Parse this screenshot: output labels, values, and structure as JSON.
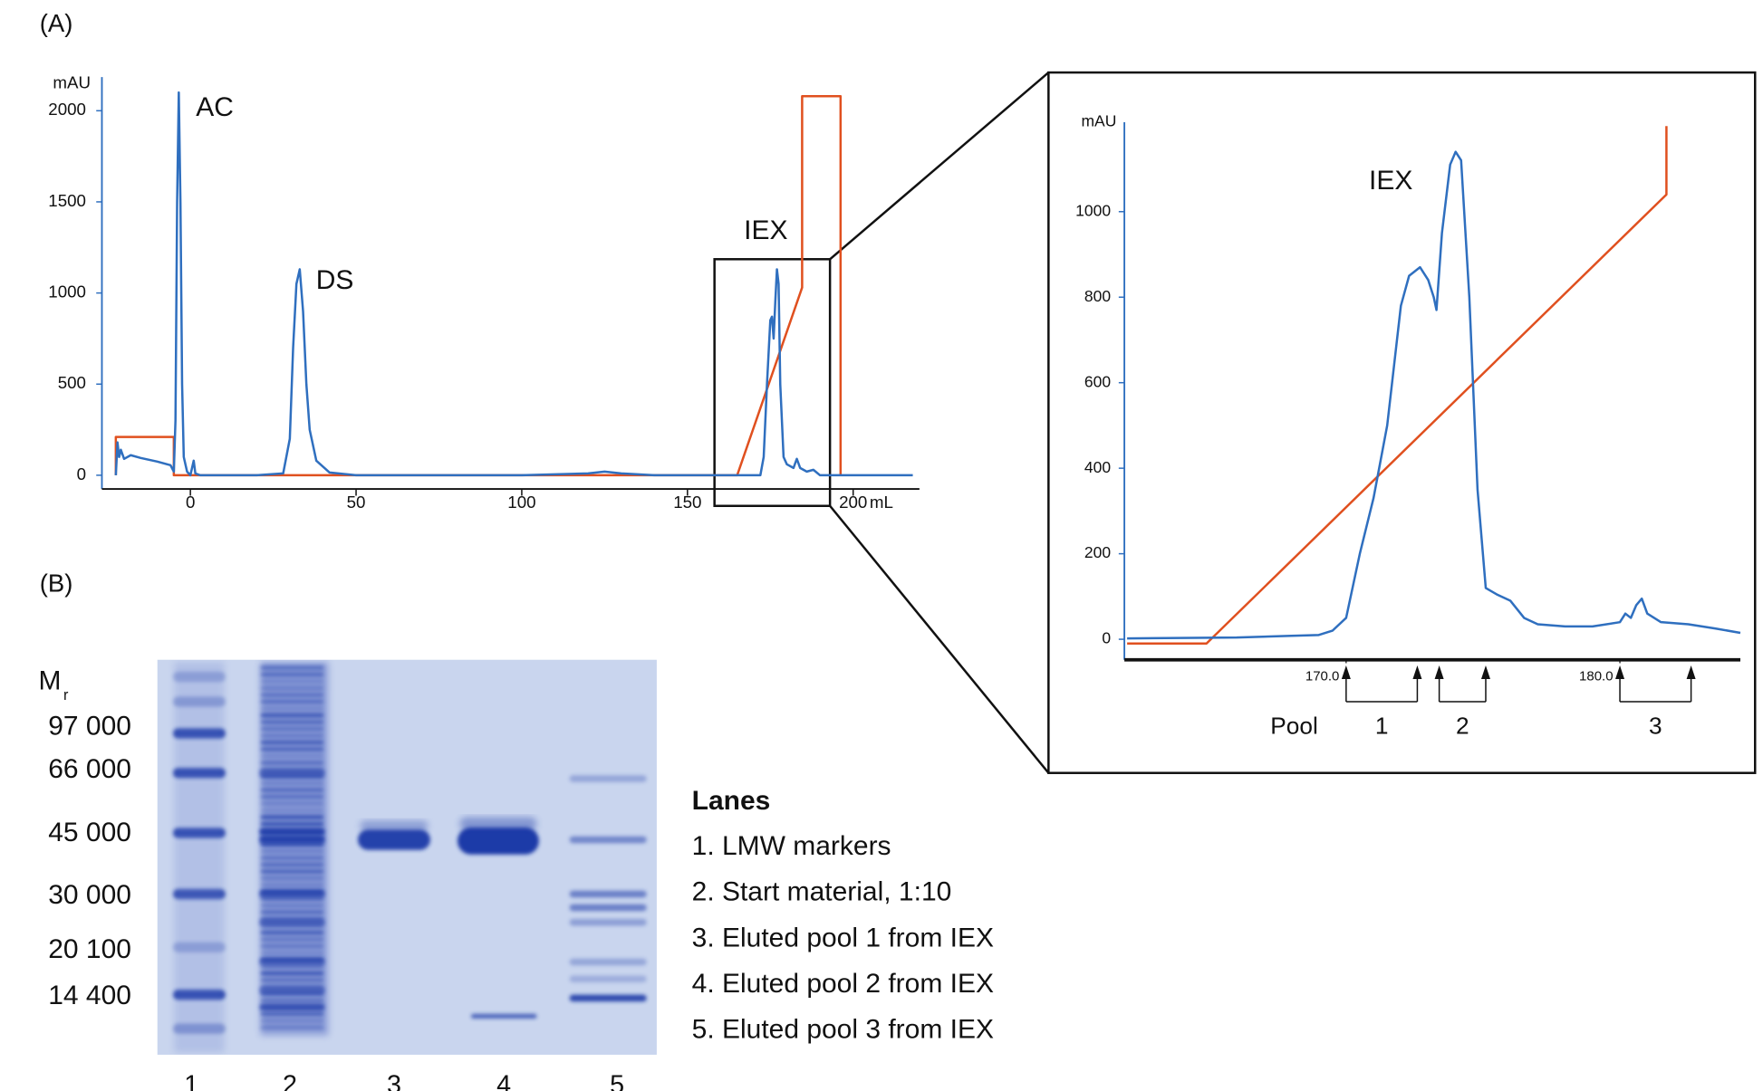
{
  "panel_labels": [
    "(A)",
    "(B)"
  ],
  "chart_data": [
    {
      "type": "line",
      "x_label": "mL",
      "y_label": "mAU",
      "xlim": [
        -26.7,
        220
      ],
      "ylim": [
        -75,
        2185
      ],
      "xticks": [
        0,
        50,
        100,
        150,
        200
      ],
      "yticks": [
        0,
        500,
        1000,
        1500,
        2000
      ],
      "axis_color": "#2f6fbf",
      "annotations": [
        "AC",
        "DS",
        "IEX"
      ],
      "series": [
        {
          "color": "#2f6fbf",
          "x": [
            -22.5,
            -22,
            -21.5,
            -21,
            -20,
            -18,
            -15,
            -10,
            -6,
            -5,
            -4.5,
            -4,
            -3.5,
            -3,
            -2.5,
            -2,
            -1,
            0,
            1,
            1.5,
            3,
            20,
            28,
            30,
            31,
            32,
            33,
            34,
            35,
            36,
            38,
            42,
            50,
            100,
            120,
            125,
            130,
            140,
            172,
            173,
            174,
            175,
            175.5,
            176,
            176.5,
            177,
            177.5,
            178,
            179,
            180,
            182,
            183,
            184,
            186,
            188,
            190,
            218
          ],
          "values": [
            0,
            180,
            100,
            140,
            90,
            110,
            95,
            75,
            55,
            20,
            300,
            1500,
            2100,
            1500,
            500,
            100,
            20,
            0,
            80,
            10,
            0,
            0,
            10,
            200,
            700,
            1050,
            1130,
            900,
            500,
            250,
            80,
            15,
            0,
            0,
            10,
            20,
            10,
            0,
            0,
            100,
            500,
            850,
            870,
            750,
            950,
            1130,
            1050,
            500,
            100,
            60,
            40,
            90,
            40,
            20,
            30,
            0,
            0
          ]
        },
        {
          "color": "#e0501f",
          "x": [
            -22.5,
            -22.5,
            -5,
            -5,
            165,
            184.6,
            184.6,
            196.2,
            196.2
          ],
          "values": [
            0,
            210,
            210,
            0,
            0,
            1030,
            2080,
            2080,
            0
          ]
        }
      ]
    },
    {
      "type": "line",
      "y_label": "mAU",
      "xlim": [
        161.9,
        184.4
      ],
      "ylim": [
        -48,
        1209
      ],
      "xticks": [
        {
          "value": 170,
          "label": "170.0"
        },
        {
          "value": 180,
          "label": "180.0"
        }
      ],
      "yticks": [
        0,
        200,
        400,
        600,
        800,
        1000
      ],
      "axis_color": "#2f6fbf",
      "annotations": [
        "IEX"
      ],
      "series": [
        {
          "color": "#2f6fbf",
          "x": [
            162,
            166,
            168,
            169,
            169.5,
            170,
            170.5,
            171,
            171.5,
            172,
            172.3,
            172.7,
            173,
            173.2,
            173.3,
            173.5,
            173.8,
            174,
            174.2,
            174.5,
            174.8,
            175.1,
            175.5,
            176,
            176.5,
            177,
            178,
            179,
            180,
            180.2,
            180.4,
            180.6,
            180.8,
            181,
            181.5,
            182.5,
            183.5,
            184.4
          ],
          "values": [
            2,
            4,
            8,
            10,
            20,
            50,
            200,
            330,
            500,
            780,
            850,
            870,
            840,
            800,
            770,
            950,
            1110,
            1140,
            1120,
            800,
            350,
            120,
            105,
            90,
            50,
            35,
            30,
            30,
            40,
            60,
            50,
            80,
            95,
            60,
            40,
            35,
            25,
            15
          ]
        },
        {
          "color": "#e0501f",
          "x": [
            162,
            164.9,
            181.7,
            181.7
          ],
          "values": [
            -10,
            -10,
            1040,
            1200
          ]
        }
      ],
      "pool_label": "Pool",
      "pools": [
        {
          "name": "1",
          "range": [
            170,
            172.6
          ]
        },
        {
          "name": "2",
          "range": [
            173.4,
            175.1
          ]
        },
        {
          "name": "3",
          "range": [
            180,
            182.6
          ]
        }
      ]
    }
  ],
  "gel": {
    "mr_label": {
      "main": "M",
      "sub": "r"
    },
    "markers": [
      "97 000",
      "66 000",
      "45 000",
      "30 000",
      "20 100",
      "14 400"
    ],
    "lane_numbers": [
      "1",
      "2",
      "3",
      "4",
      "5"
    ],
    "legend_title": "Lanes",
    "legend_items": [
      "1. LMW markers",
      "2. Start material, 1:10",
      "3. Eluted pool 1 from IEX",
      "4. Eluted pool 2 from IEX",
      "5. Eluted pool 3 from IEX"
    ]
  }
}
